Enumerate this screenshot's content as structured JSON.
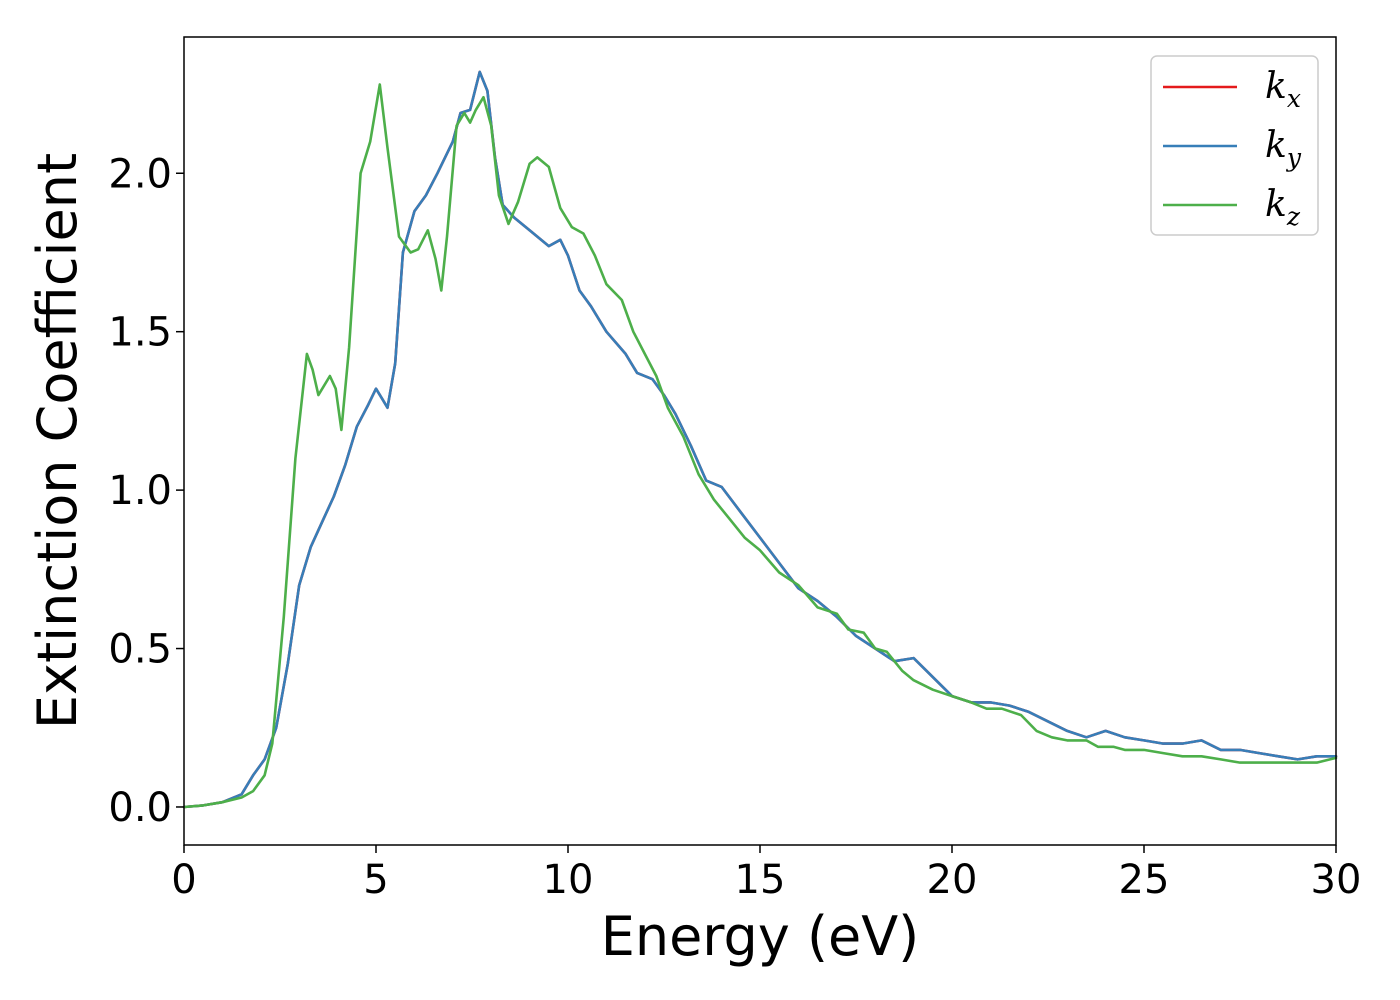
{
  "chart_data": {
    "type": "line",
    "xlabel": "Energy (eV)",
    "ylabel": "Extinction Coefficient",
    "xlim": [
      0,
      30
    ],
    "ylim": [
      -0.12,
      2.43
    ],
    "xticks": [
      0,
      5,
      10,
      15,
      20,
      25,
      30
    ],
    "yticks": [
      0.0,
      0.5,
      1.0,
      1.5,
      2.0
    ],
    "xtick_labels": [
      "0",
      "5",
      "10",
      "15",
      "20",
      "25",
      "30"
    ],
    "ytick_labels": [
      "0.0",
      "0.5",
      "1.0",
      "1.5",
      "2.0"
    ],
    "grid": false,
    "legend": {
      "placement": "top-right",
      "entries": [
        {
          "base": "k",
          "sub": "x",
          "color": "#e41a1c"
        },
        {
          "base": "k",
          "sub": "y",
          "color": "#377eb8"
        },
        {
          "base": "k",
          "sub": "z",
          "color": "#4daf4a"
        }
      ]
    },
    "series": [
      {
        "name": "kx",
        "color": "#e41a1c",
        "points": [
          [
            0,
            0
          ],
          [
            0.5,
            0.005
          ],
          [
            1,
            0.015
          ],
          [
            1.5,
            0.04
          ],
          [
            1.8,
            0.1
          ],
          [
            2.1,
            0.15
          ],
          [
            2.4,
            0.25
          ],
          [
            2.7,
            0.45
          ],
          [
            3.0,
            0.7
          ],
          [
            3.3,
            0.82
          ],
          [
            3.6,
            0.9
          ],
          [
            3.9,
            0.98
          ],
          [
            4.2,
            1.08
          ],
          [
            4.5,
            1.2
          ],
          [
            4.8,
            1.27
          ],
          [
            5.0,
            1.32
          ],
          [
            5.15,
            1.29
          ],
          [
            5.3,
            1.26
          ],
          [
            5.5,
            1.4
          ],
          [
            5.7,
            1.75
          ],
          [
            6.0,
            1.88
          ],
          [
            6.3,
            1.93
          ],
          [
            6.6,
            2.0
          ],
          [
            7.0,
            2.1
          ],
          [
            7.2,
            2.19
          ],
          [
            7.45,
            2.2
          ],
          [
            7.7,
            2.32
          ],
          [
            7.9,
            2.26
          ],
          [
            8.1,
            2.05
          ],
          [
            8.3,
            1.9
          ],
          [
            8.6,
            1.86
          ],
          [
            9.0,
            1.82
          ],
          [
            9.5,
            1.77
          ],
          [
            9.8,
            1.79
          ],
          [
            10.0,
            1.74
          ],
          [
            10.3,
            1.63
          ],
          [
            10.6,
            1.58
          ],
          [
            11.0,
            1.5
          ],
          [
            11.5,
            1.43
          ],
          [
            11.8,
            1.37
          ],
          [
            12.2,
            1.35
          ],
          [
            12.5,
            1.3
          ],
          [
            12.8,
            1.24
          ],
          [
            13.2,
            1.14
          ],
          [
            13.6,
            1.03
          ],
          [
            14.0,
            1.01
          ],
          [
            14.5,
            0.93
          ],
          [
            15.0,
            0.85
          ],
          [
            15.5,
            0.77
          ],
          [
            16.0,
            0.69
          ],
          [
            16.5,
            0.65
          ],
          [
            17.0,
            0.6
          ],
          [
            17.5,
            0.54
          ],
          [
            18.0,
            0.5
          ],
          [
            18.5,
            0.46
          ],
          [
            19.0,
            0.47
          ],
          [
            19.5,
            0.41
          ],
          [
            20.0,
            0.35
          ],
          [
            20.5,
            0.33
          ],
          [
            21.0,
            0.33
          ],
          [
            21.5,
            0.32
          ],
          [
            22.0,
            0.3
          ],
          [
            22.5,
            0.27
          ],
          [
            23.0,
            0.24
          ],
          [
            23.5,
            0.22
          ],
          [
            24.0,
            0.24
          ],
          [
            24.5,
            0.22
          ],
          [
            25.0,
            0.21
          ],
          [
            25.5,
            0.2
          ],
          [
            26.0,
            0.2
          ],
          [
            26.5,
            0.21
          ],
          [
            27.0,
            0.18
          ],
          [
            27.5,
            0.18
          ],
          [
            28.0,
            0.17
          ],
          [
            28.5,
            0.16
          ],
          [
            29.0,
            0.15
          ],
          [
            29.5,
            0.16
          ],
          [
            30.0,
            0.16
          ]
        ]
      },
      {
        "name": "ky",
        "color": "#377eb8",
        "points": [
          [
            0,
            0
          ],
          [
            0.5,
            0.005
          ],
          [
            1,
            0.015
          ],
          [
            1.5,
            0.04
          ],
          [
            1.8,
            0.1
          ],
          [
            2.1,
            0.15
          ],
          [
            2.4,
            0.25
          ],
          [
            2.7,
            0.45
          ],
          [
            3.0,
            0.7
          ],
          [
            3.3,
            0.82
          ],
          [
            3.6,
            0.9
          ],
          [
            3.9,
            0.98
          ],
          [
            4.2,
            1.08
          ],
          [
            4.5,
            1.2
          ],
          [
            4.8,
            1.27
          ],
          [
            5.0,
            1.32
          ],
          [
            5.15,
            1.29
          ],
          [
            5.3,
            1.26
          ],
          [
            5.5,
            1.4
          ],
          [
            5.7,
            1.75
          ],
          [
            6.0,
            1.88
          ],
          [
            6.3,
            1.93
          ],
          [
            6.6,
            2.0
          ],
          [
            7.0,
            2.1
          ],
          [
            7.2,
            2.19
          ],
          [
            7.45,
            2.2
          ],
          [
            7.7,
            2.32
          ],
          [
            7.9,
            2.26
          ],
          [
            8.1,
            2.05
          ],
          [
            8.3,
            1.9
          ],
          [
            8.6,
            1.86
          ],
          [
            9.0,
            1.82
          ],
          [
            9.5,
            1.77
          ],
          [
            9.8,
            1.79
          ],
          [
            10.0,
            1.74
          ],
          [
            10.3,
            1.63
          ],
          [
            10.6,
            1.58
          ],
          [
            11.0,
            1.5
          ],
          [
            11.5,
            1.43
          ],
          [
            11.8,
            1.37
          ],
          [
            12.2,
            1.35
          ],
          [
            12.5,
            1.3
          ],
          [
            12.8,
            1.24
          ],
          [
            13.2,
            1.14
          ],
          [
            13.6,
            1.03
          ],
          [
            14.0,
            1.01
          ],
          [
            14.5,
            0.93
          ],
          [
            15.0,
            0.85
          ],
          [
            15.5,
            0.77
          ],
          [
            16.0,
            0.69
          ],
          [
            16.5,
            0.65
          ],
          [
            17.0,
            0.6
          ],
          [
            17.5,
            0.54
          ],
          [
            18.0,
            0.5
          ],
          [
            18.5,
            0.46
          ],
          [
            19.0,
            0.47
          ],
          [
            19.5,
            0.41
          ],
          [
            20.0,
            0.35
          ],
          [
            20.5,
            0.33
          ],
          [
            21.0,
            0.33
          ],
          [
            21.5,
            0.32
          ],
          [
            22.0,
            0.3
          ],
          [
            22.5,
            0.27
          ],
          [
            23.0,
            0.24
          ],
          [
            23.5,
            0.22
          ],
          [
            24.0,
            0.24
          ],
          [
            24.5,
            0.22
          ],
          [
            25.0,
            0.21
          ],
          [
            25.5,
            0.2
          ],
          [
            26.0,
            0.2
          ],
          [
            26.5,
            0.21
          ],
          [
            27.0,
            0.18
          ],
          [
            27.5,
            0.18
          ],
          [
            28.0,
            0.17
          ],
          [
            28.5,
            0.16
          ],
          [
            29.0,
            0.15
          ],
          [
            29.5,
            0.16
          ],
          [
            30.0,
            0.16
          ]
        ]
      },
      {
        "name": "kz",
        "color": "#4daf4a",
        "points": [
          [
            0,
            0
          ],
          [
            0.5,
            0.005
          ],
          [
            1,
            0.015
          ],
          [
            1.5,
            0.03
          ],
          [
            1.8,
            0.05
          ],
          [
            2.1,
            0.1
          ],
          [
            2.3,
            0.2
          ],
          [
            2.6,
            0.6
          ],
          [
            2.9,
            1.1
          ],
          [
            3.2,
            1.43
          ],
          [
            3.35,
            1.38
          ],
          [
            3.5,
            1.3
          ],
          [
            3.8,
            1.36
          ],
          [
            3.95,
            1.32
          ],
          [
            4.1,
            1.19
          ],
          [
            4.3,
            1.45
          ],
          [
            4.6,
            2.0
          ],
          [
            4.85,
            2.1
          ],
          [
            5.1,
            2.28
          ],
          [
            5.3,
            2.08
          ],
          [
            5.6,
            1.8
          ],
          [
            5.9,
            1.75
          ],
          [
            6.1,
            1.76
          ],
          [
            6.35,
            1.82
          ],
          [
            6.55,
            1.73
          ],
          [
            6.7,
            1.63
          ],
          [
            6.85,
            1.8
          ],
          [
            7.1,
            2.15
          ],
          [
            7.3,
            2.19
          ],
          [
            7.45,
            2.16
          ],
          [
            7.6,
            2.2
          ],
          [
            7.8,
            2.24
          ],
          [
            8.0,
            2.15
          ],
          [
            8.2,
            1.93
          ],
          [
            8.45,
            1.84
          ],
          [
            8.7,
            1.91
          ],
          [
            9.0,
            2.03
          ],
          [
            9.2,
            2.05
          ],
          [
            9.5,
            2.02
          ],
          [
            9.8,
            1.89
          ],
          [
            10.1,
            1.83
          ],
          [
            10.4,
            1.81
          ],
          [
            10.7,
            1.74
          ],
          [
            11.0,
            1.65
          ],
          [
            11.4,
            1.6
          ],
          [
            11.7,
            1.5
          ],
          [
            12.0,
            1.43
          ],
          [
            12.3,
            1.36
          ],
          [
            12.6,
            1.26
          ],
          [
            13.0,
            1.17
          ],
          [
            13.4,
            1.05
          ],
          [
            13.8,
            0.97
          ],
          [
            14.2,
            0.91
          ],
          [
            14.6,
            0.85
          ],
          [
            15.0,
            0.81
          ],
          [
            15.5,
            0.74
          ],
          [
            16.0,
            0.7
          ],
          [
            16.5,
            0.63
          ],
          [
            17.0,
            0.61
          ],
          [
            17.3,
            0.56
          ],
          [
            17.7,
            0.55
          ],
          [
            18.0,
            0.5
          ],
          [
            18.3,
            0.49
          ],
          [
            18.7,
            0.43
          ],
          [
            19.0,
            0.4
          ],
          [
            19.5,
            0.37
          ],
          [
            20.0,
            0.35
          ],
          [
            20.5,
            0.33
          ],
          [
            20.9,
            0.31
          ],
          [
            21.3,
            0.31
          ],
          [
            21.8,
            0.29
          ],
          [
            22.2,
            0.24
          ],
          [
            22.6,
            0.22
          ],
          [
            23.0,
            0.21
          ],
          [
            23.5,
            0.21
          ],
          [
            23.8,
            0.19
          ],
          [
            24.2,
            0.19
          ],
          [
            24.5,
            0.18
          ],
          [
            25.0,
            0.18
          ],
          [
            25.5,
            0.17
          ],
          [
            26.0,
            0.16
          ],
          [
            26.5,
            0.16
          ],
          [
            27.0,
            0.15
          ],
          [
            27.5,
            0.14
          ],
          [
            28.0,
            0.14
          ],
          [
            28.5,
            0.14
          ],
          [
            29.0,
            0.14
          ],
          [
            29.5,
            0.14
          ],
          [
            30.0,
            0.155
          ]
        ]
      }
    ]
  }
}
